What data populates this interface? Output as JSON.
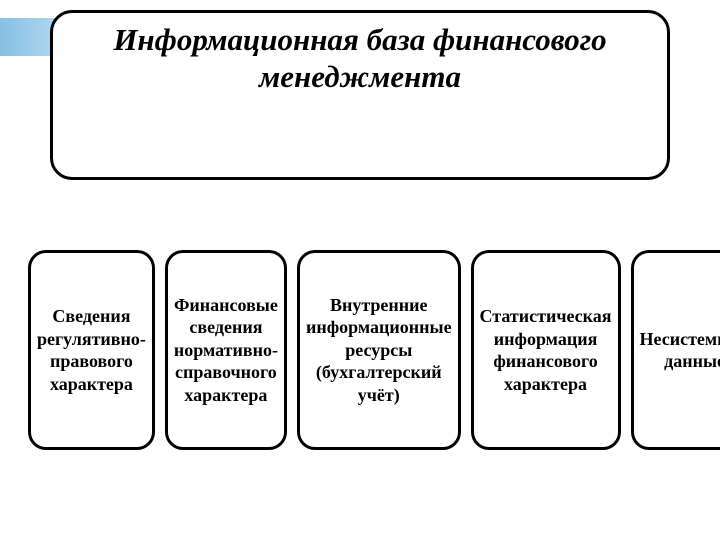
{
  "diagram": {
    "type": "infographic",
    "background_color": "#ffffff",
    "border_color": "#000000",
    "border_width": 3,
    "border_radius": 20,
    "accent_color": "#78b9e1",
    "title": "Информационная база финансового менеджмента",
    "title_font": {
      "family": "Times New Roman",
      "style": "italic",
      "weight": "bold",
      "size_pt": 24,
      "color": "#000000"
    },
    "box_font": {
      "family": "Times New Roman",
      "weight": "bold",
      "size_pt": 14,
      "color": "#000000"
    },
    "boxes": [
      {
        "label": "Сведения регулятивно-правового характера"
      },
      {
        "label": "Финансовые сведения нормативно-справочного характера"
      },
      {
        "label": "Внутренние информационные ресурсы (бухгалтерский учёт)"
      },
      {
        "label": "Статистическая информация финансового характера"
      },
      {
        "label": "Несистемные данные"
      }
    ]
  }
}
